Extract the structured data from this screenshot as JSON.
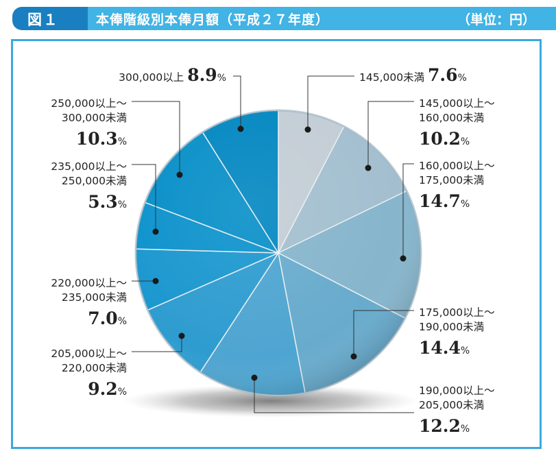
{
  "header": {
    "figure_label": "図１",
    "title": "本俸階級別本俸月額（平成２７年度）",
    "unit": "（単位：円）"
  },
  "chart_data": {
    "type": "pie",
    "title": "本俸階級別本俸月額（平成２７年度）",
    "unit": "（単位：円）",
    "percent_sign": "%",
    "slices": [
      {
        "label": [
          "145,000未満"
        ],
        "value": 7.6,
        "pct": "7.6",
        "color": "#c3cdd5"
      },
      {
        "label": [
          "145,000以上～",
          "160,000未満"
        ],
        "value": 10.2,
        "pct": "10.2",
        "color": "#a3bfcf"
      },
      {
        "label": [
          "160,000以上～",
          "175,000未満"
        ],
        "value": 14.7,
        "pct": "14.7",
        "color": "#86b5cc"
      },
      {
        "label": [
          "175,000以上～",
          "190,000未満"
        ],
        "value": 14.4,
        "pct": "14.4",
        "color": "#68abcd"
      },
      {
        "label": [
          "190,000以上～",
          "205,000未満"
        ],
        "value": 12.2,
        "pct": "12.2",
        "color": "#4ea5d1"
      },
      {
        "label": [
          "205,000以上～",
          "220,000未満"
        ],
        "value": 9.2,
        "pct": "9.2",
        "color": "#2e9cd0"
      },
      {
        "label": [
          "220,000以上～",
          "235,000未満"
        ],
        "value": 7.0,
        "pct": "7.0",
        "color": "#1a97cf"
      },
      {
        "label": [
          "235,000以上～",
          "250,000未満"
        ],
        "value": 5.3,
        "pct": "5.3",
        "color": "#0c92cc"
      },
      {
        "label": [
          "250,000以上～",
          "300,000未満"
        ],
        "value": 10.3,
        "pct": "10.3",
        "color": "#078fc8"
      },
      {
        "label": [
          "300,000以上"
        ],
        "value": 8.9,
        "pct": "8.9",
        "color": "#0287c1"
      }
    ]
  }
}
